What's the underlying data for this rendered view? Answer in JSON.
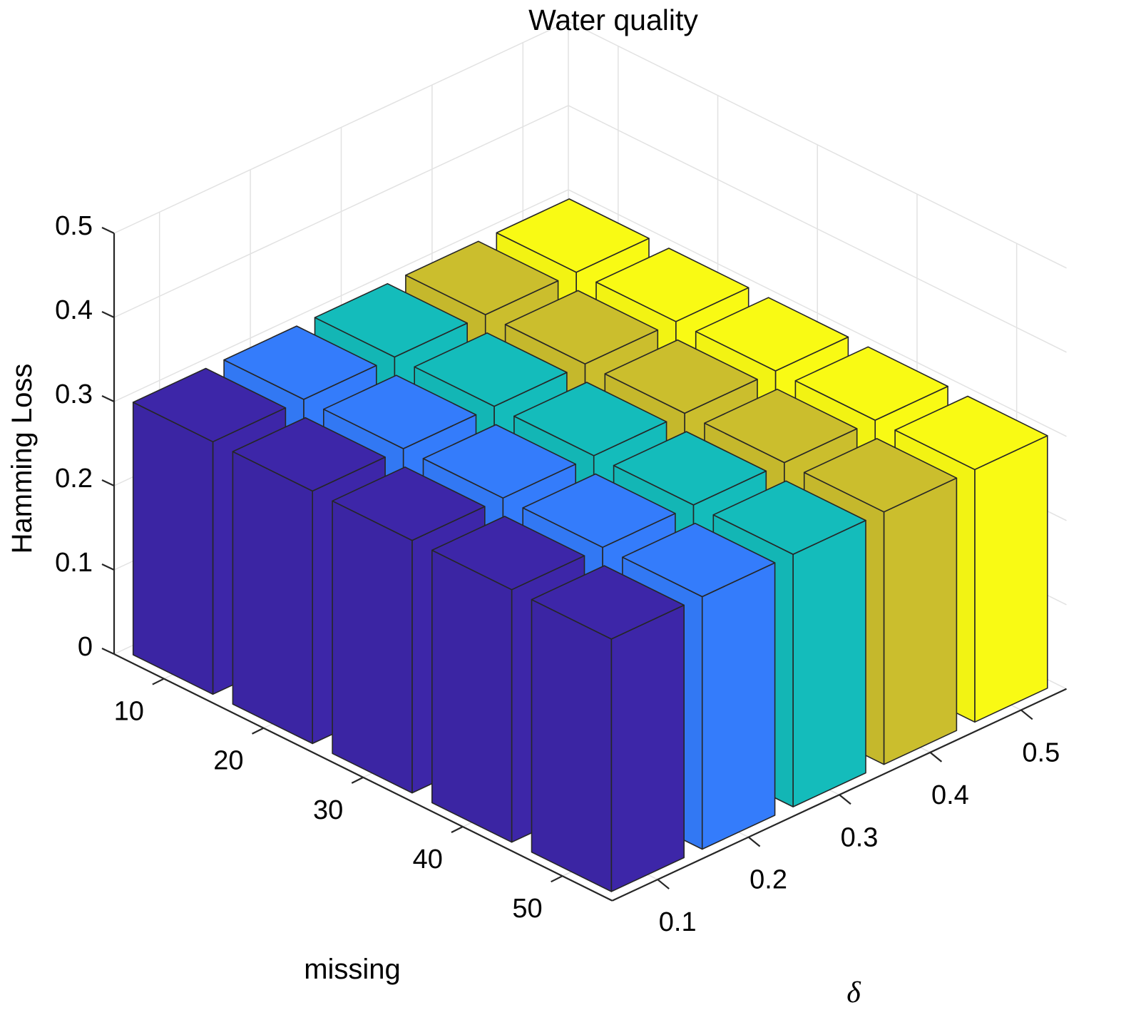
{
  "chart_data": {
    "type": "bar3d",
    "title": "Water quality",
    "zlabel": "Hamming Loss",
    "xlabel": "missing",
    "ylabel": "δ",
    "missing_ticks": [
      "10",
      "20",
      "30",
      "40",
      "50"
    ],
    "delta_ticks": [
      "0.1",
      "0.2",
      "0.3",
      "0.4",
      "0.5"
    ],
    "z_ticks": [
      "0",
      "0.1",
      "0.2",
      "0.3",
      "0.4",
      "0.5"
    ],
    "zlim": [
      0,
      0.5
    ],
    "grid": true,
    "colors": [
      "#3d26a8",
      "#347cfb",
      "#14bcbb",
      "#cbbe2d",
      "#f9fa14"
    ],
    "series": [
      {
        "delta": "0.1",
        "values": [
          0.3,
          0.3,
          0.3,
          0.3,
          0.3
        ]
      },
      {
        "delta": "0.2",
        "values": [
          0.3,
          0.3,
          0.3,
          0.3,
          0.3
        ]
      },
      {
        "delta": "0.3",
        "values": [
          0.3,
          0.3,
          0.3,
          0.3,
          0.3
        ]
      },
      {
        "delta": "0.4",
        "values": [
          0.3,
          0.3,
          0.3,
          0.3,
          0.3
        ]
      },
      {
        "delta": "0.5",
        "values": [
          0.3,
          0.3,
          0.3,
          0.3,
          0.3
        ]
      }
    ]
  }
}
